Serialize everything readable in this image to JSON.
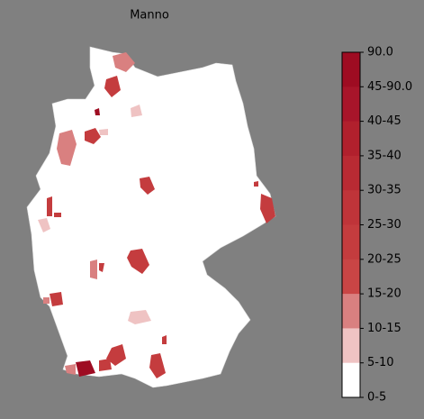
{
  "title": "Manno",
  "colorbar": {
    "labels": [
      "90.0",
      "45-90.0",
      "40-45",
      "35-40",
      "30-35",
      "25-30",
      "20-25",
      "15-20",
      "10-15",
      "5-10",
      "0-5"
    ],
    "colors": [
      "#9e0c22",
      "#a8152a",
      "#b1202d",
      "#b92a33",
      "#bf3439",
      "#c43c3e",
      "#c94545",
      "#d98080",
      "#efc3c3",
      "#ffffff"
    ]
  }
}
